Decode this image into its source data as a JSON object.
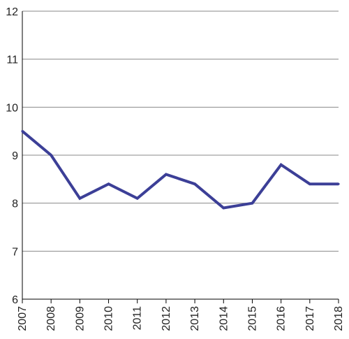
{
  "chart_data": {
    "type": "line",
    "x": [
      "2007",
      "2008",
      "2009",
      "2010",
      "2011",
      "2012",
      "2013",
      "2014",
      "2015",
      "2016",
      "2017",
      "2018"
    ],
    "series": [
      {
        "values": [
          9.5,
          9.0,
          8.1,
          8.4,
          8.1,
          8.6,
          8.4,
          7.9,
          8.0,
          8.8,
          8.4,
          8.4
        ]
      }
    ],
    "yticks": [
      6,
      7,
      8,
      9,
      10,
      11,
      12
    ],
    "ylim": [
      6,
      12
    ],
    "grid": true,
    "line_color": "#3c3f97",
    "grid_color": "#8a8a8a",
    "axis_color": "#000000"
  }
}
